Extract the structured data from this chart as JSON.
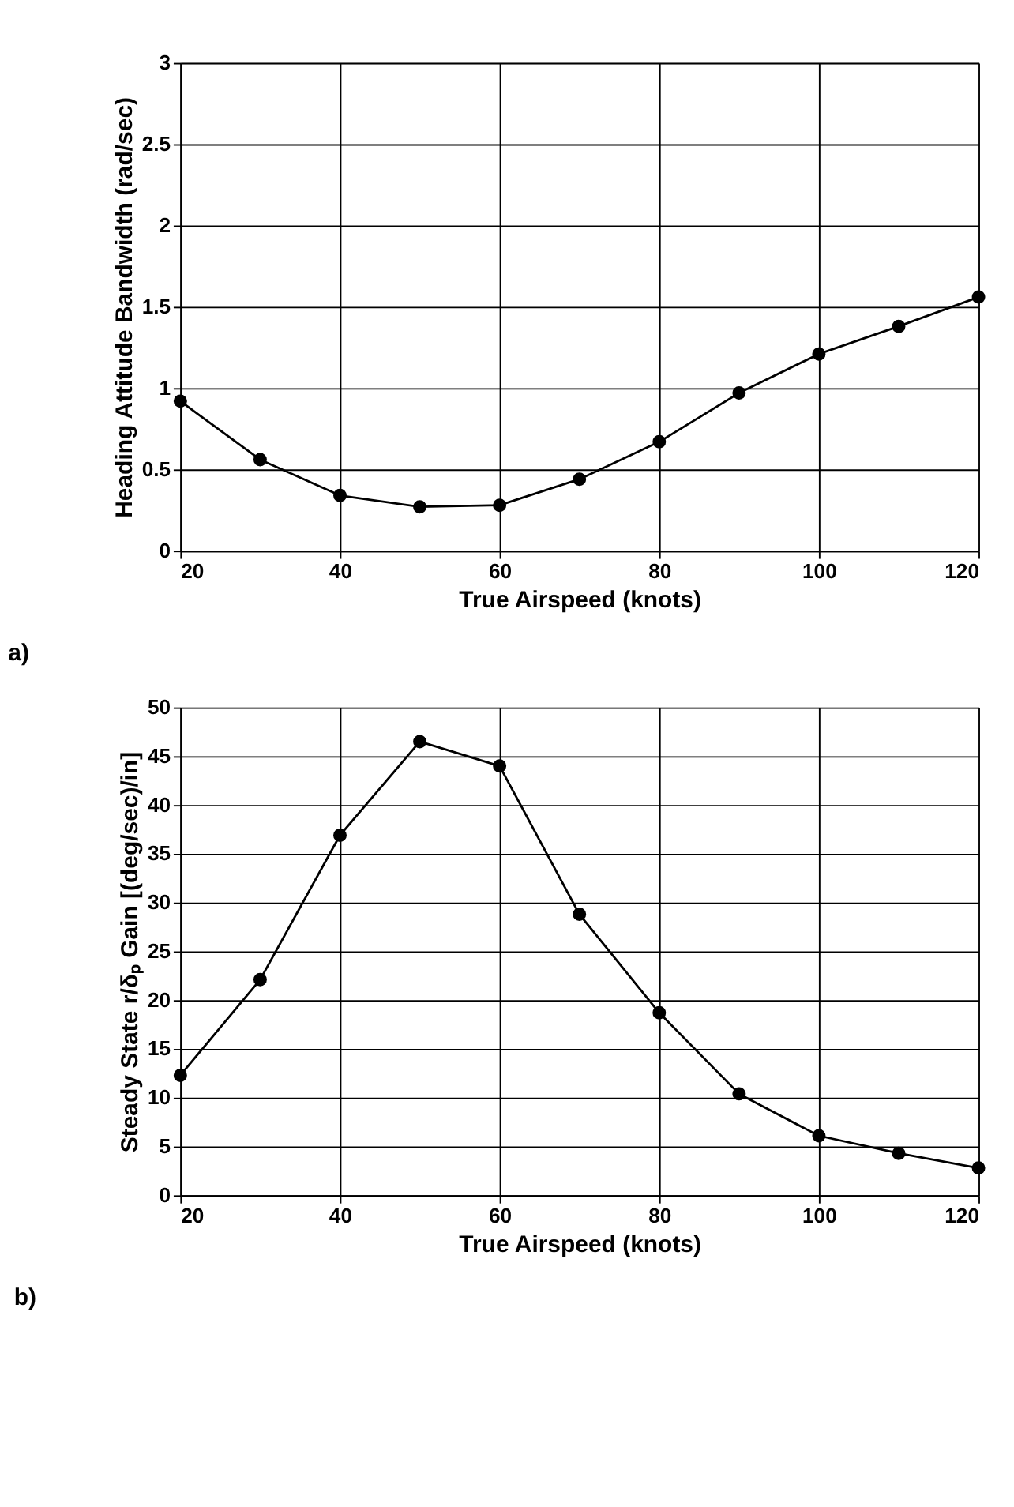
{
  "chart_data": [
    {
      "type": "line",
      "xlabel": "True Airspeed (knots)",
      "ylabel": "Heading Attitude Bandwidth (rad/sec)",
      "annotations": [
        "a)"
      ],
      "x": [
        20,
        30,
        40,
        50,
        60,
        70,
        80,
        90,
        100,
        110,
        120
      ],
      "series": [
        {
          "color": "#000000",
          "values": [
            0.92,
            0.56,
            0.34,
            0.27,
            0.28,
            0.44,
            0.67,
            0.97,
            1.21,
            1.38,
            1.56
          ]
        }
      ],
      "xlim": [
        20,
        120
      ],
      "xticks": [
        20,
        40,
        60,
        80,
        100,
        120
      ],
      "ylim": [
        0,
        3
      ],
      "yticks": [
        0,
        0.5,
        1,
        1.5,
        2,
        2.5,
        3
      ],
      "grid": true,
      "marker": "circle",
      "line_style": "solid"
    },
    {
      "type": "line",
      "xlabel": "True Airspeed (knots)",
      "ylabel": "Steady State r/δₚ Gain [(deg/sec)/in]",
      "annotations": [
        "b)"
      ],
      "x": [
        20,
        30,
        40,
        50,
        60,
        70,
        80,
        90,
        100,
        110,
        120
      ],
      "series": [
        {
          "color": "#000000",
          "values": [
            12.3,
            22.1,
            36.9,
            46.5,
            44.0,
            28.8,
            18.7,
            10.4,
            6.1,
            4.3,
            2.8
          ]
        }
      ],
      "xlim": [
        20,
        120
      ],
      "xticks": [
        20,
        40,
        60,
        80,
        100,
        120
      ],
      "ylim": [
        0,
        50
      ],
      "yticks": [
        0,
        5,
        10,
        15,
        20,
        25,
        30,
        35,
        40,
        45,
        50
      ],
      "grid": true,
      "marker": "circle",
      "line_style": "solid"
    }
  ]
}
